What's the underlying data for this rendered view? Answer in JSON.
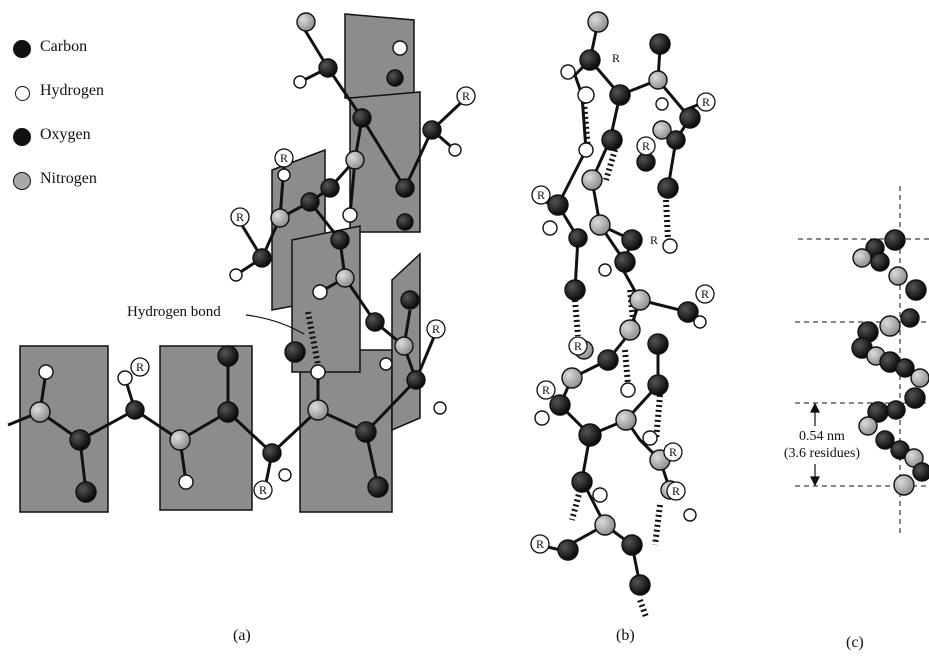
{
  "legend": {
    "items": [
      {
        "label": "Carbon",
        "fill": "#111111"
      },
      {
        "label": "Hydrogen",
        "fill": "#ffffff"
      },
      {
        "label": "Oxygen",
        "fill": "#111111"
      },
      {
        "label": "Nitrogen",
        "fill": "#a9a9a9"
      }
    ]
  },
  "annotations": {
    "hydrogen_bond": "Hydrogen bond",
    "r_group": "R",
    "pitch_value": "0.54 nm",
    "pitch_residues": "(3.6 residues)"
  },
  "captions": {
    "a": "(a)",
    "b": "(b)",
    "c": "(c)"
  },
  "colors": {
    "plane": "#8c8c8c",
    "carbon": "#111111",
    "nitrogen": "#a9a9a9",
    "hydrogen": "#ffffff",
    "hbond": "#111111"
  }
}
